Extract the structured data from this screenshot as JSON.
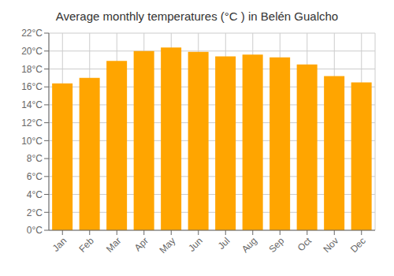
{
  "chart_data": {
    "type": "bar",
    "title": "Average monthly temperatures (°C ) in Belén Gualcho",
    "categories": [
      "Jan",
      "Feb",
      "Mar",
      "Apr",
      "May",
      "Jun",
      "Jul",
      "Aug",
      "Sep",
      "Oct",
      "Nov",
      "Dec"
    ],
    "values": [
      16.4,
      17.0,
      18.9,
      20.0,
      20.4,
      19.9,
      19.4,
      19.6,
      19.3,
      18.5,
      17.2,
      16.5
    ],
    "color": "#FFA500",
    "ylim": [
      0,
      22
    ],
    "yticks": [
      {
        "value": 0,
        "label": "0°C"
      },
      {
        "value": 2,
        "label": "2°C"
      },
      {
        "value": 4,
        "label": "4°C"
      },
      {
        "value": 6,
        "label": "6°C"
      },
      {
        "value": 8,
        "label": "8°C"
      },
      {
        "value": 10,
        "label": "10°C"
      },
      {
        "value": 12,
        "label": "12°C"
      },
      {
        "value": 14,
        "label": "14°C"
      },
      {
        "value": 16,
        "label": "16°C"
      },
      {
        "value": 18,
        "label": "18°C"
      },
      {
        "value": 20,
        "label": "20°C"
      },
      {
        "value": 22,
        "label": "22°C"
      }
    ],
    "grid": true
  }
}
